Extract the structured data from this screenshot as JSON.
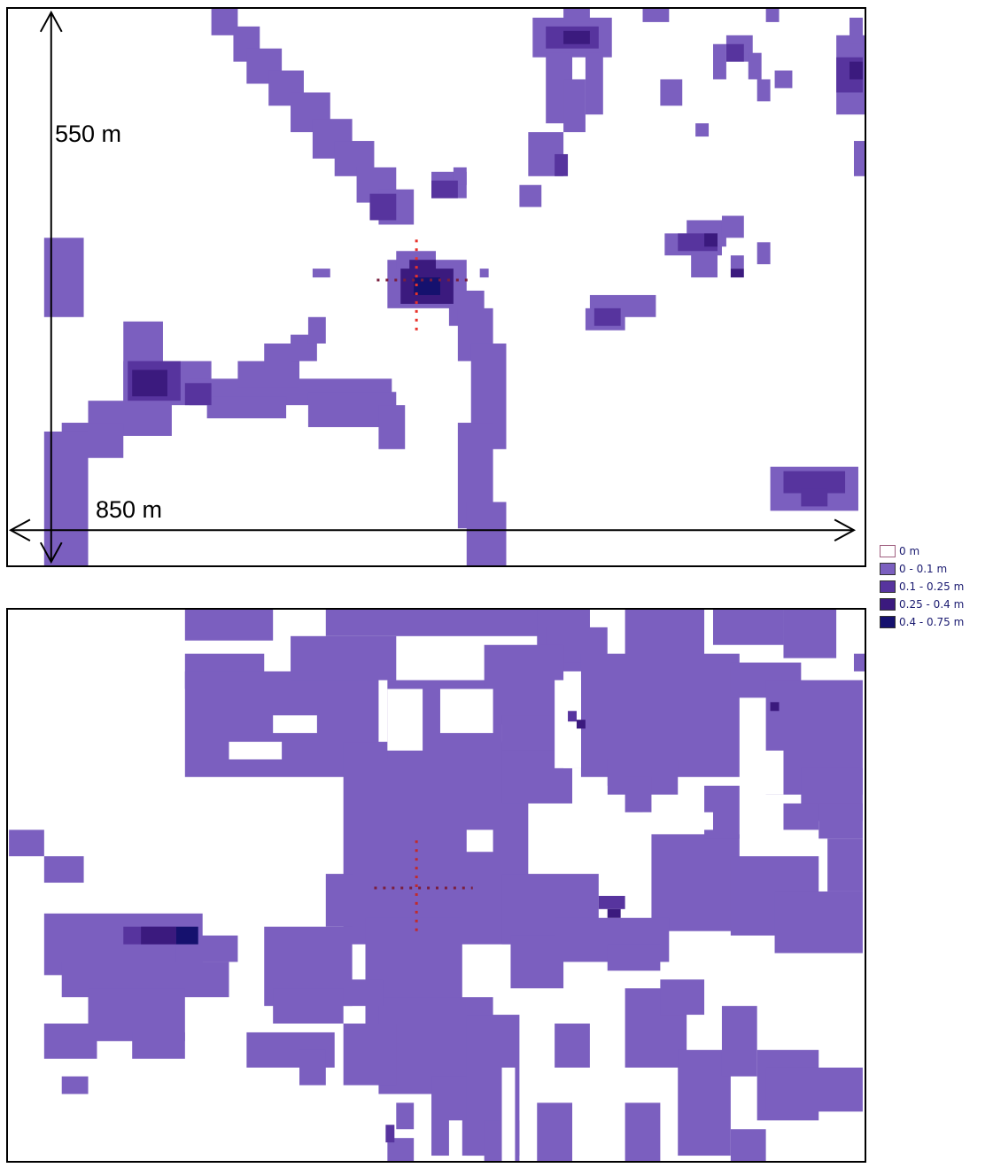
{
  "map": {
    "top_panel": {
      "height_label": "550 m",
      "width_label": "850 m"
    }
  },
  "legend": {
    "items": [
      {
        "label": "0 m",
        "color": "#ffffff"
      },
      {
        "label": "0 - 0.1 m",
        "color": "#7b5fbf"
      },
      {
        "label": "0.1 - 0.25 m",
        "color": "#57349e"
      },
      {
        "label": "0.25 - 0.4 m",
        "color": "#3b1a7e"
      },
      {
        "label": "0.4 - 0.75 m",
        "color": "#15116e"
      }
    ]
  },
  "colors": {
    "marker_vertical": "#e8322b",
    "marker_horizontal": "#7a1f3f",
    "frame": "#000000"
  }
}
